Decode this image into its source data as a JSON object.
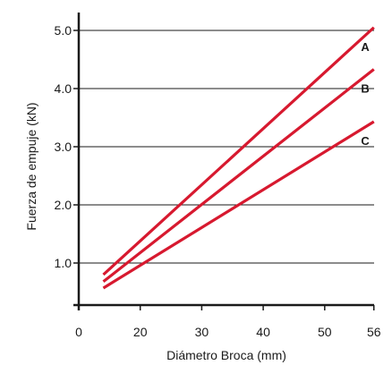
{
  "chart_data": {
    "type": "line",
    "xlabel": "Diámetro Broca (mm)",
    "ylabel": "Fuerza de empuje (kN)",
    "xlim": [
      0,
      56
    ],
    "ylim": [
      0,
      5.5
    ],
    "x_ticks": [
      {
        "value": 0,
        "label": "0"
      },
      {
        "value": 10,
        "label": "20"
      },
      {
        "value": 20,
        "label": "30"
      },
      {
        "value": 30,
        "label": "40"
      },
      {
        "value": 40,
        "label": "50"
      },
      {
        "value": 48,
        "label": "56"
      }
    ],
    "y_ticks": [
      {
        "value": 1,
        "label": "1.0"
      },
      {
        "value": 2,
        "label": "2.0"
      },
      {
        "value": 3,
        "label": "3.0"
      },
      {
        "value": 4,
        "label": "4.0"
      },
      {
        "value": 5,
        "label": "5.0"
      }
    ],
    "grid": "horizontal",
    "line_color": "#d7192f",
    "series": [
      {
        "name": "A",
        "points": [
          [
            14,
            0.8
          ],
          [
            56,
            5.05
          ]
        ]
      },
      {
        "name": "B",
        "points": [
          [
            14,
            0.68
          ],
          [
            56,
            4.33
          ]
        ]
      },
      {
        "name": "C",
        "points": [
          [
            14,
            0.57
          ],
          [
            56,
            3.43
          ]
        ]
      }
    ]
  }
}
